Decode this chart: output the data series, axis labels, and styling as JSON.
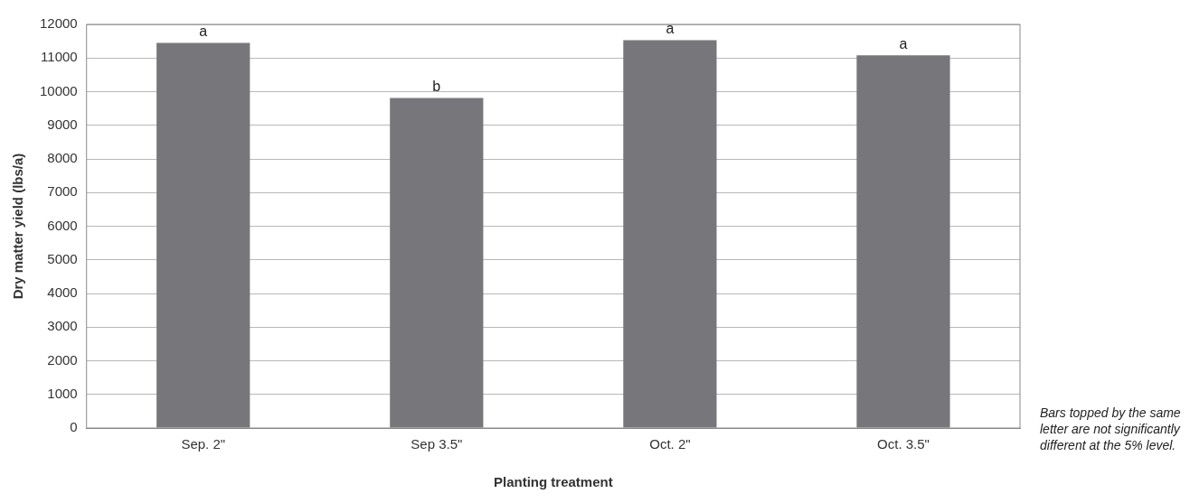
{
  "chart_data": {
    "type": "bar",
    "xlabel": "Planting treatment",
    "ylabel": "Dry matter yield (lbs/a)",
    "categories": [
      "Sep. 2\"",
      "Sep 3.5\"",
      "Oct. 2\"",
      "Oct. 3.5\""
    ],
    "values": [
      11450,
      9810,
      11530,
      11080
    ],
    "color": "#77777b",
    "ylim": [
      0,
      12000
    ],
    "yticks": [
      0,
      1000,
      2000,
      3000,
      4000,
      5000,
      6000,
      7000,
      8000,
      9000,
      10000,
      11000,
      12000
    ],
    "grid": "y",
    "annotations": [
      {
        "text": "a",
        "x": "Sep. 2\"",
        "y": 11450
      },
      {
        "text": "b",
        "x": "Sep 3.5\"",
        "y": 9810
      },
      {
        "text": "a",
        "x": "Oct. 2\"",
        "y": 11530
      },
      {
        "text": "a",
        "x": "Oct. 3.5\"",
        "y": 11080
      },
      "Bars topped by the same letter are not significantly different at the 5% level."
    ]
  }
}
